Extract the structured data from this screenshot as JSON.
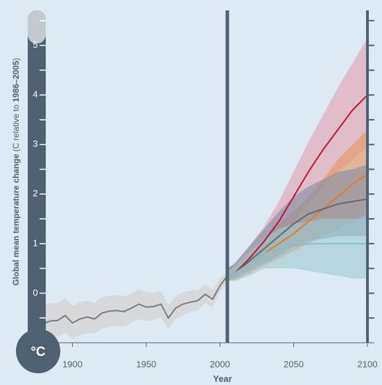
{
  "chart_data": {
    "type": "line",
    "unit": "°C",
    "y_label": [
      {
        "text": "Global mean temperature change",
        "bold": true
      },
      {
        "text": " (C relative to ",
        "bold": false
      },
      {
        "text": "1986–2005",
        "bold": true
      },
      {
        "text": ")",
        "bold": false
      }
    ],
    "x_label": "Year",
    "xlim": [
      1880,
      2100
    ],
    "ylim": [
      -1,
      6
    ],
    "xticks": [
      1900,
      1950,
      2000,
      2050,
      2100
    ],
    "yticks": [
      0,
      1,
      2,
      3,
      4,
      5
    ],
    "yminorticks": [
      -0.5,
      0.5,
      1.5,
      2.5,
      3.5,
      4.5,
      5.5
    ],
    "divider_x": 2005,
    "series": [
      {
        "color": "#7a7a7a",
        "band_color": "#d6d6d6",
        "x": [
          1880,
          1885,
          1890,
          1895,
          1900,
          1905,
          1910,
          1915,
          1920,
          1925,
          1930,
          1935,
          1940,
          1945,
          1950,
          1955,
          1960,
          1965,
          1970,
          1975,
          1980,
          1985,
          1990,
          1995,
          2000,
          2005
        ],
        "values": [
          -0.62,
          -0.56,
          -0.55,
          -0.45,
          -0.6,
          -0.52,
          -0.48,
          -0.52,
          -0.4,
          -0.36,
          -0.35,
          -0.37,
          -0.3,
          -0.22,
          -0.28,
          -0.27,
          -0.22,
          -0.5,
          -0.3,
          -0.22,
          -0.18,
          -0.15,
          -0.02,
          -0.12,
          0.15,
          0.35
        ],
        "lower": [
          -0.95,
          -0.9,
          -0.88,
          -0.8,
          -0.92,
          -0.85,
          -0.8,
          -0.82,
          -0.72,
          -0.68,
          -0.66,
          -0.67,
          -0.6,
          -0.52,
          -0.56,
          -0.54,
          -0.48,
          -0.72,
          -0.52,
          -0.44,
          -0.38,
          -0.34,
          -0.2,
          -0.28,
          0.02,
          0.25
        ],
        "upper": [
          -0.25,
          -0.2,
          -0.2,
          -0.1,
          -0.25,
          -0.18,
          -0.15,
          -0.2,
          -0.08,
          -0.05,
          -0.04,
          -0.06,
          0.0,
          0.08,
          0.02,
          0.0,
          0.05,
          -0.25,
          -0.05,
          0.02,
          0.05,
          0.06,
          0.18,
          0.06,
          0.3,
          0.45
        ]
      },
      {
        "color": "#c8102e",
        "band_color": "#e3a2ad",
        "x": [
          2005,
          2010,
          2020,
          2030,
          2040,
          2050,
          2060,
          2070,
          2080,
          2090,
          2100
        ],
        "values": [
          0.35,
          0.4,
          0.7,
          1.05,
          1.45,
          1.95,
          2.45,
          2.9,
          3.3,
          3.7,
          4.0
        ],
        "lower": [
          0.25,
          0.3,
          0.5,
          0.8,
          1.1,
          1.45,
          1.8,
          2.15,
          2.45,
          2.7,
          2.95
        ],
        "upper": [
          0.5,
          0.6,
          0.95,
          1.35,
          1.85,
          2.45,
          3.05,
          3.6,
          4.15,
          4.65,
          5.15
        ]
      },
      {
        "color": "#e87722",
        "band_color": "#e8935a",
        "x": [
          2005,
          2010,
          2020,
          2030,
          2040,
          2050,
          2060,
          2070,
          2080,
          2090,
          2100
        ],
        "values": [
          0.35,
          0.4,
          0.6,
          0.8,
          1.0,
          1.2,
          1.45,
          1.7,
          1.95,
          2.2,
          2.4
        ],
        "lower": [
          0.25,
          0.25,
          0.4,
          0.55,
          0.7,
          0.85,
          1.0,
          1.15,
          1.3,
          1.45,
          1.6
        ],
        "upper": [
          0.5,
          0.55,
          0.85,
          1.1,
          1.4,
          1.65,
          1.95,
          2.3,
          2.7,
          3.0,
          3.3
        ]
      },
      {
        "color": "#5d6b78",
        "band_color": "#7d8ea6",
        "x": [
          2005,
          2010,
          2020,
          2030,
          2040,
          2050,
          2060,
          2070,
          2080,
          2090,
          2100
        ],
        "values": [
          0.35,
          0.4,
          0.65,
          0.9,
          1.15,
          1.4,
          1.6,
          1.7,
          1.8,
          1.85,
          1.9
        ],
        "lower": [
          0.25,
          0.3,
          0.45,
          0.6,
          0.75,
          0.95,
          1.05,
          1.1,
          1.15,
          1.15,
          1.15
        ],
        "upper": [
          0.5,
          0.6,
          0.95,
          1.3,
          1.65,
          1.95,
          2.15,
          2.3,
          2.45,
          2.5,
          2.6
        ]
      },
      {
        "color": "#86c0c6",
        "band_color": "#9fcbd1",
        "x": [
          2005,
          2010,
          2020,
          2030,
          2040,
          2050,
          2060,
          2070,
          2080,
          2090,
          2100
        ],
        "values": [
          0.35,
          0.4,
          0.6,
          0.8,
          0.9,
          0.95,
          1.0,
          1.0,
          1.0,
          1.0,
          1.0
        ],
        "lower": [
          0.25,
          0.25,
          0.35,
          0.5,
          0.5,
          0.5,
          0.45,
          0.4,
          0.35,
          0.3,
          0.3
        ],
        "upper": [
          0.45,
          0.55,
          0.85,
          1.1,
          1.3,
          1.4,
          1.45,
          1.5,
          1.5,
          1.5,
          1.5
        ]
      }
    ]
  }
}
